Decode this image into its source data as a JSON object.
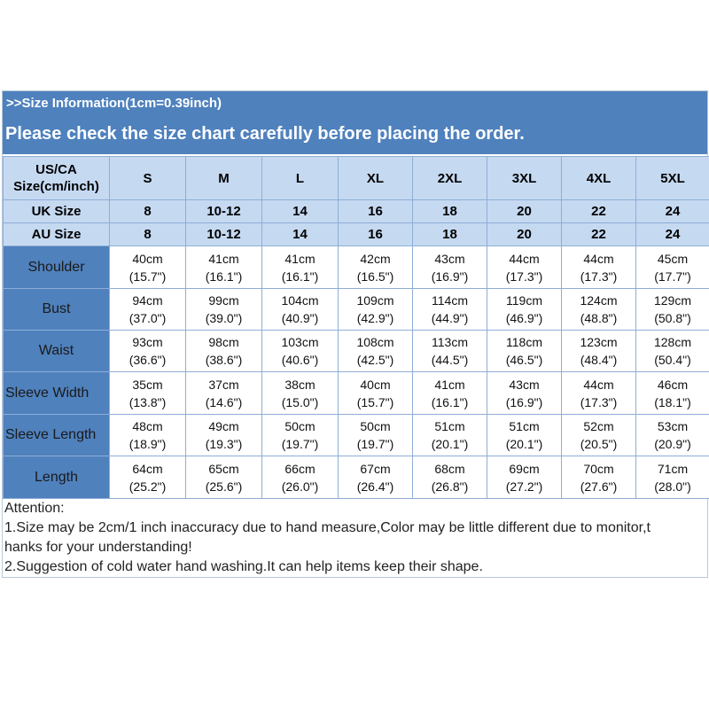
{
  "banner": {
    "subtitle": ">>Size Information(1cm=0.39inch)",
    "title": "Please check the size chart carefully before placing the order."
  },
  "table": {
    "corner_line1": "US/CA",
    "corner_line2": "Size(cm/inch)",
    "sizes": [
      "S",
      "M",
      "L",
      "XL",
      "2XL",
      "3XL",
      "4XL",
      "5XL"
    ],
    "uk_label": "UK Size",
    "uk": [
      "8",
      "10-12",
      "14",
      "16",
      "18",
      "20",
      "22",
      "24"
    ],
    "au_label": "AU Size",
    "au": [
      "8",
      "10-12",
      "14",
      "16",
      "18",
      "20",
      "22",
      "24"
    ],
    "rows": [
      {
        "label": "Shoulder",
        "cm": [
          "40cm",
          "41cm",
          "41cm",
          "42cm",
          "43cm",
          "44cm",
          "44cm",
          "45cm"
        ],
        "inch": [
          "(15.7\")",
          "(16.1\")",
          "(16.1\")",
          "(16.5\")",
          "(16.9\")",
          "(17.3\")",
          "(17.3\")",
          "(17.7\")"
        ]
      },
      {
        "label": "Bust",
        "cm": [
          "94cm",
          "99cm",
          "104cm",
          "109cm",
          "114cm",
          "119cm",
          "124cm",
          "129cm"
        ],
        "inch": [
          "(37.0\")",
          "(39.0\")",
          "(40.9\")",
          "(42.9\")",
          "(44.9\")",
          "(46.9\")",
          "(48.8\")",
          "(50.8\")"
        ]
      },
      {
        "label": "Waist",
        "cm": [
          "93cm",
          "98cm",
          "103cm",
          "108cm",
          "113cm",
          "118cm",
          "123cm",
          "128cm"
        ],
        "inch": [
          "(36.6\")",
          "(38.6\")",
          "(40.6\")",
          "(42.5\")",
          "(44.5\")",
          "(46.5\")",
          "(48.4\")",
          "(50.4\")"
        ]
      },
      {
        "label": "Sleeve Width",
        "cm": [
          "35cm",
          "37cm",
          "38cm",
          "40cm",
          "41cm",
          "43cm",
          "44cm",
          "46cm"
        ],
        "inch": [
          "(13.8\")",
          "(14.6\")",
          "(15.0\")",
          "(15.7\")",
          "(16.1\")",
          "(16.9\")",
          "(17.3\")",
          "(18.1\")"
        ]
      },
      {
        "label": "Sleeve Length",
        "cm": [
          "48cm",
          "49cm",
          "50cm",
          "50cm",
          "51cm",
          "51cm",
          "52cm",
          "53cm"
        ],
        "inch": [
          "(18.9\")",
          "(19.3\")",
          "(19.7\")",
          "(19.7\")",
          "(20.1\")",
          "(20.1\")",
          "(20.5\")",
          "(20.9\")"
        ]
      },
      {
        "label": "Length",
        "cm": [
          "64cm",
          "65cm",
          "66cm",
          "67cm",
          "68cm",
          "69cm",
          "70cm",
          "71cm"
        ],
        "inch": [
          "(25.2\")",
          "(25.6\")",
          "(26.0\")",
          "(26.4\")",
          "(26.8\")",
          "(27.2\")",
          "(27.6\")",
          "(28.0\")"
        ]
      }
    ]
  },
  "notes": {
    "heading": "Attention:",
    "line1a": "1.Size may be 2cm/1 inch inaccuracy due to hand measure,Color may be little different due to monitor,t",
    "line1b": "hanks for your understanding!",
    "line2": "2.Suggestion of cold water hand washing.It can help items keep their shape."
  },
  "colors": {
    "banner": "#4f81bd",
    "header_cell": "#c5d9f1",
    "label_cell": "#4f81bd",
    "border": "#8eaed6"
  }
}
